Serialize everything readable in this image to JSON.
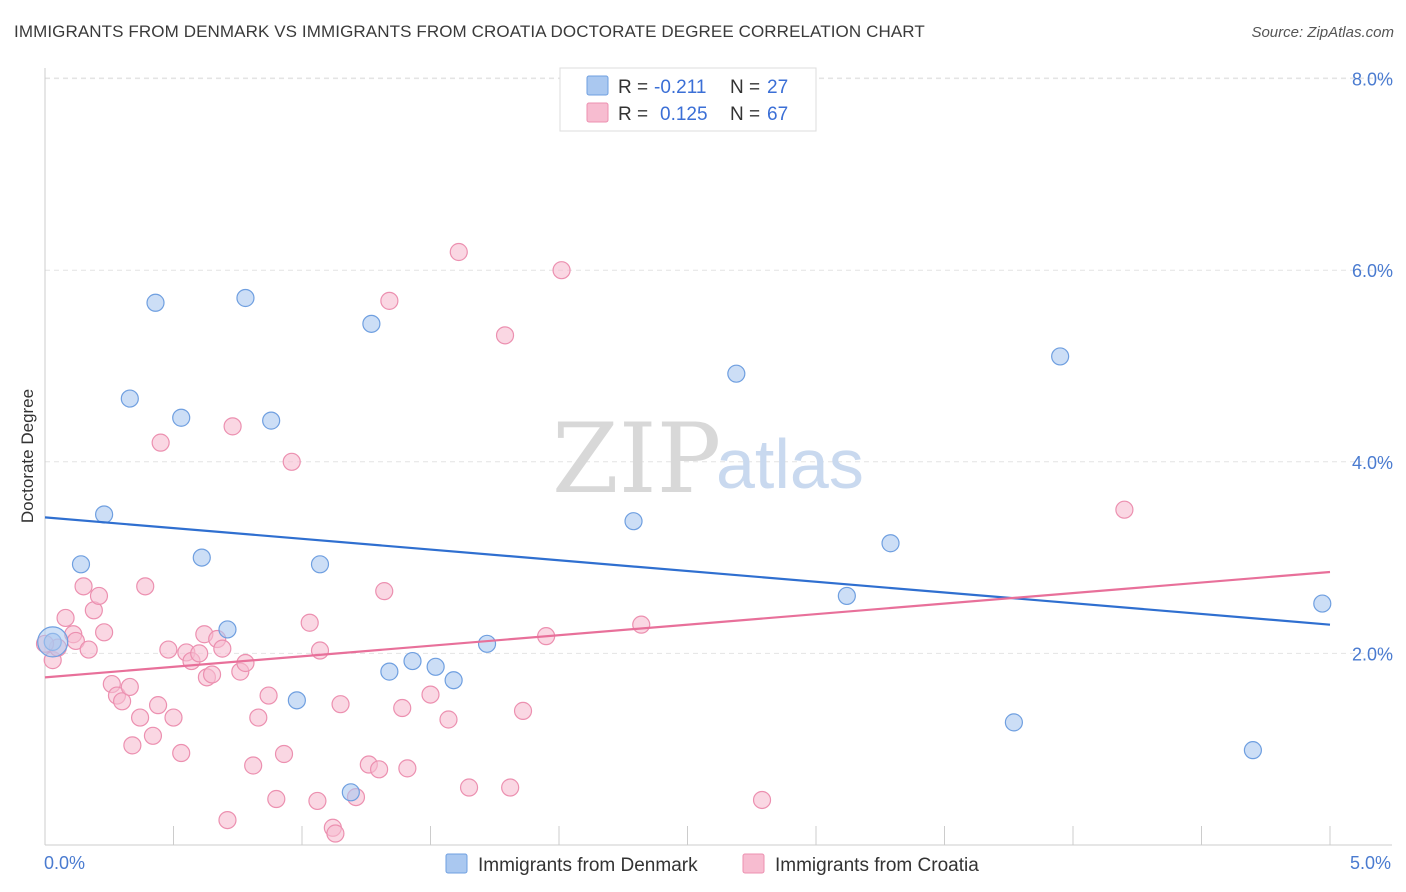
{
  "title": "IMMIGRANTS FROM DENMARK VS IMMIGRANTS FROM CROATIA DOCTORATE DEGREE CORRELATION CHART",
  "source": "Source: ZipAtlas.com",
  "watermark": {
    "zip": "ZIP",
    "atlas": "atlas"
  },
  "colors": {
    "denmark_fill": "#aac8f0",
    "denmark_stroke": "#6f9fe0",
    "denmark_line": "#2f6fd0",
    "croatia_fill": "#f7bcd0",
    "croatia_stroke": "#ec90b0",
    "croatia_line": "#e8709a"
  },
  "legend": {
    "r_label": "R =",
    "n_label": "N =",
    "denmark_r": "-0.211",
    "denmark_n": "27",
    "croatia_r": "0.125",
    "croatia_n": "67"
  },
  "chart_data": {
    "type": "scatter",
    "title": "IMMIGRANTS FROM DENMARK VS IMMIGRANTS FROM CROATIA DOCTORATE DEGREE CORRELATION CHART",
    "xlabel": "",
    "ylabel": "Doctorate Degree",
    "xlim": [
      0,
      5
    ],
    "ylim": [
      0,
      8.3
    ],
    "x_tick_labels": [
      "0.0%",
      "5.0%"
    ],
    "y_ticks": [
      2,
      4,
      6,
      8
    ],
    "y_tick_labels": [
      "2.0%",
      "4.0%",
      "6.0%",
      "8.0%"
    ],
    "grid": true,
    "series": [
      {
        "name": "Immigrants from Denmark",
        "trend": {
          "x": [
            0,
            5
          ],
          "y": [
            3.42,
            2.3
          ]
        },
        "points": [
          [
            0.03,
            2.12
          ],
          [
            0.14,
            2.93
          ],
          [
            0.23,
            3.45
          ],
          [
            0.33,
            4.66
          ],
          [
            0.43,
            5.66
          ],
          [
            0.53,
            4.46
          ],
          [
            0.61,
            3.0
          ],
          [
            0.71,
            2.25
          ],
          [
            0.78,
            5.71
          ],
          [
            0.88,
            4.43
          ],
          [
            0.98,
            1.51
          ],
          [
            1.07,
            2.93
          ],
          [
            1.19,
            0.55
          ],
          [
            1.27,
            5.44
          ],
          [
            1.34,
            1.81
          ],
          [
            1.43,
            1.92
          ],
          [
            1.52,
            1.86
          ],
          [
            1.59,
            1.72
          ],
          [
            1.72,
            2.1
          ],
          [
            2.29,
            3.38
          ],
          [
            2.69,
            4.92
          ],
          [
            3.12,
            2.6
          ],
          [
            3.29,
            3.15
          ],
          [
            3.77,
            1.28
          ],
          [
            3.95,
            5.1
          ],
          [
            4.7,
            0.99
          ],
          [
            4.97,
            2.52
          ]
        ]
      },
      {
        "name": "Immigrants from Croatia",
        "trend": {
          "x": [
            0,
            5
          ],
          "y": [
            1.75,
            2.85
          ]
        },
        "points": [
          [
            0.03,
            1.93
          ],
          [
            0.05,
            2.06
          ],
          [
            0.08,
            2.37
          ],
          [
            0.11,
            2.2
          ],
          [
            0.12,
            2.13
          ],
          [
            0.15,
            2.7
          ],
          [
            0.17,
            2.04
          ],
          [
            0.19,
            2.45
          ],
          [
            0.21,
            2.6
          ],
          [
            0.23,
            2.22
          ],
          [
            0.26,
            1.68
          ],
          [
            0.28,
            1.56
          ],
          [
            0.3,
            1.5
          ],
          [
            0.33,
            1.65
          ],
          [
            0.34,
            1.04
          ],
          [
            0.37,
            1.33
          ],
          [
            0.39,
            2.7
          ],
          [
            0.42,
            1.14
          ],
          [
            0.44,
            1.46
          ],
          [
            0.45,
            4.2
          ],
          [
            0.48,
            2.04
          ],
          [
            0.5,
            1.33
          ],
          [
            0.53,
            0.96
          ],
          [
            0.55,
            2.01
          ],
          [
            0.57,
            1.92
          ],
          [
            0.6,
            2.0
          ],
          [
            0.62,
            2.2
          ],
          [
            0.63,
            1.75
          ],
          [
            0.65,
            1.78
          ],
          [
            0.67,
            2.15
          ],
          [
            0.69,
            2.05
          ],
          [
            0.71,
            0.26
          ],
          [
            0.73,
            4.37
          ],
          [
            0.76,
            1.81
          ],
          [
            0.78,
            1.9
          ],
          [
            0.81,
            0.83
          ],
          [
            0.83,
            1.33
          ],
          [
            0.87,
            1.56
          ],
          [
            0.9,
            0.48
          ],
          [
            0.93,
            0.95
          ],
          [
            0.96,
            4.0
          ],
          [
            1.03,
            2.32
          ],
          [
            1.06,
            0.46
          ],
          [
            1.07,
            2.03
          ],
          [
            1.12,
            0.18
          ],
          [
            1.13,
            0.12
          ],
          [
            1.15,
            1.47
          ],
          [
            1.21,
            0.5
          ],
          [
            1.26,
            0.84
          ],
          [
            1.3,
            0.79
          ],
          [
            1.32,
            2.65
          ],
          [
            1.34,
            5.68
          ],
          [
            1.39,
            1.43
          ],
          [
            1.41,
            0.8
          ],
          [
            1.5,
            1.57
          ],
          [
            1.57,
            1.31
          ],
          [
            1.61,
            6.19
          ],
          [
            1.65,
            0.6
          ],
          [
            1.79,
            5.32
          ],
          [
            1.81,
            0.6
          ],
          [
            1.86,
            1.4
          ],
          [
            1.95,
            2.18
          ],
          [
            2.01,
            6.0
          ],
          [
            2.32,
            2.3
          ],
          [
            2.79,
            0.47
          ],
          [
            4.2,
            3.5
          ],
          [
            0.0,
            2.1
          ]
        ]
      }
    ]
  },
  "bottom_legend": {
    "denmark": "Immigrants from Denmark",
    "croatia": "Immigrants from Croatia"
  }
}
